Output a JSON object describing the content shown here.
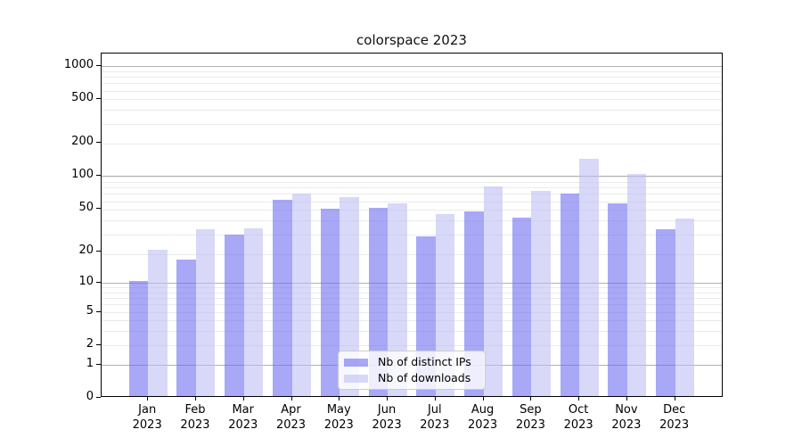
{
  "title": "colorspace 2023",
  "chart_data": {
    "type": "bar",
    "title": "colorspace 2023",
    "categories": [
      "Jan",
      "Feb",
      "Mar",
      "Apr",
      "May",
      "Jun",
      "Jul",
      "Aug",
      "Sep",
      "Oct",
      "Nov",
      "Dec"
    ],
    "category_year": "2023",
    "series": [
      {
        "name": "Nb of distinct IPs",
        "color": "rgba(110,110,242,0.6)",
        "values": [
          10,
          16,
          28,
          58,
          48,
          49,
          27,
          46,
          40,
          67,
          54,
          31
        ]
      },
      {
        "name": "Nb of downloads",
        "color": "rgba(190,190,243,0.6)",
        "values": [
          20,
          31,
          32,
          67,
          62,
          54,
          43,
          78,
          71,
          140,
          100,
          39
        ]
      }
    ],
    "yticks": [
      0,
      1,
      2,
      5,
      10,
      20,
      50,
      100,
      200,
      500,
      1000
    ],
    "y_scale": "log10(1+v)",
    "ylim": [
      0,
      1300
    ],
    "xlabel": "",
    "ylabel": "",
    "grid": true,
    "legend_position": "lower center",
    "colors": {
      "major_grid": "#b0b0b0",
      "minor_grid": "#ebebeb",
      "axis": "#000000",
      "background": "#ffffff"
    }
  }
}
